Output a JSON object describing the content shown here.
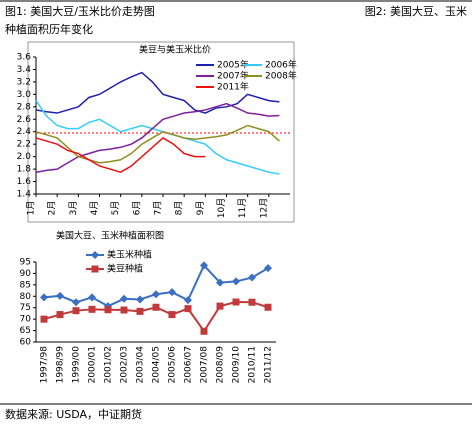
{
  "header": {
    "left": "图1: 美国大豆/玉米比价走势图",
    "right": "图2: 美国大豆、玉米",
    "right_line2": "种植面积历年变化"
  },
  "source": "数据来源: USDA，中证期货",
  "chart_data": [
    {
      "type": "line",
      "title": "美豆与美玉米比价",
      "x": [
        0,
        0.5,
        1,
        1.5,
        2,
        2.5,
        3,
        3.5,
        4,
        4.5,
        5,
        5.5,
        6,
        6.5,
        7,
        7.5,
        8,
        8.5,
        9,
        9.5,
        10,
        10.5,
        11,
        11.5
      ],
      "xlim": [
        0,
        12
      ],
      "xticks": [
        {
          "value": 0,
          "label": "1月"
        },
        {
          "value": 1,
          "label": "2月"
        },
        {
          "value": 2,
          "label": "3月"
        },
        {
          "value": 3,
          "label": "4月"
        },
        {
          "value": 4,
          "label": "5月"
        },
        {
          "value": 5,
          "label": "6月"
        },
        {
          "value": 6,
          "label": "7月"
        },
        {
          "value": 7,
          "label": "8月"
        },
        {
          "value": 8,
          "label": "9月"
        },
        {
          "value": 9,
          "label": "10月"
        },
        {
          "value": 10,
          "label": "11月"
        },
        {
          "value": 11,
          "label": "12月"
        }
      ],
      "ylim": [
        1.4,
        3.6
      ],
      "yticks": [
        1.4,
        1.6,
        1.8,
        {
          "value": 2,
          "label": "2.0"
        },
        2.2,
        2.4,
        2.6,
        2.8,
        {
          "value": 3,
          "label": "3.0"
        },
        3.2,
        3.4,
        3.6
      ],
      "reference_line": {
        "value": 2.38,
        "color": "#ff0000"
      },
      "series": [
        {
          "name": "2005年",
          "color": "#1f1fb4",
          "values": [
            2.75,
            2.72,
            2.7,
            2.75,
            2.8,
            2.95,
            3.0,
            3.1,
            3.2,
            3.28,
            3.35,
            3.2,
            3.0,
            2.95,
            2.9,
            2.75,
            2.7,
            2.78,
            2.8,
            2.85,
            3.0,
            2.95,
            2.9,
            2.88
          ]
        },
        {
          "name": "2006年",
          "color": "#33ccff",
          "values": [
            2.9,
            2.65,
            2.5,
            2.45,
            2.45,
            2.55,
            2.6,
            2.5,
            2.4,
            2.45,
            2.5,
            2.45,
            2.4,
            2.35,
            2.3,
            2.25,
            2.2,
            2.05,
            1.95,
            1.9,
            1.85,
            1.8,
            1.75,
            1.72
          ]
        },
        {
          "name": "2007年",
          "color": "#7f1f9f",
          "values": [
            1.75,
            1.78,
            1.8,
            1.9,
            2.0,
            2.05,
            2.1,
            2.12,
            2.15,
            2.2,
            2.3,
            2.45,
            2.6,
            2.65,
            2.7,
            2.72,
            2.75,
            2.8,
            2.85,
            2.78,
            2.7,
            2.68,
            2.65,
            2.66
          ]
        },
        {
          "name": "2008年",
          "color": "#8f8f1f",
          "values": [
            2.4,
            2.35,
            2.3,
            2.15,
            2.0,
            1.95,
            1.9,
            1.92,
            1.95,
            2.05,
            2.2,
            2.3,
            2.4,
            2.35,
            2.3,
            2.28,
            2.3,
            2.32,
            2.35,
            2.42,
            2.5,
            2.45,
            2.4,
            2.25
          ]
        },
        {
          "name": "2011年",
          "color": "#ee1111",
          "values": [
            2.3,
            2.25,
            2.2,
            2.1,
            2.05,
            1.95,
            1.85,
            1.8,
            1.75,
            1.85,
            2.0,
            2.15,
            2.3,
            2.2,
            2.05,
            2.0,
            2.0,
            null,
            null,
            null,
            null,
            null,
            null,
            null
          ]
        }
      ]
    },
    {
      "type": "line",
      "title": "美国大豆、玉米种植面积图",
      "categories": [
        "1997/98",
        "1998/99",
        "1999/00",
        "2000/01",
        "2001/02",
        "2002/03",
        "2003/04",
        "2004/05",
        "2005/06",
        "2006/07",
        "2007/08",
        "2008/09",
        "2009/10",
        "2010/11",
        "2011/12"
      ],
      "ylim": [
        60,
        95
      ],
      "yticks": [
        60,
        65,
        70,
        75,
        80,
        85,
        90,
        95
      ],
      "series": [
        {
          "name": "美玉米种植",
          "color": "#3a6fc4",
          "marker": "diamond",
          "values": [
            79.5,
            80.2,
            77.4,
            79.5,
            75.7,
            78.9,
            78.6,
            80.9,
            81.8,
            78.3,
            93.5,
            86.0,
            86.5,
            88.2,
            92.3
          ]
        },
        {
          "name": "美豆种植",
          "color": "#c0393b",
          "marker": "square",
          "values": [
            70.0,
            72.0,
            73.7,
            74.3,
            74.1,
            74.0,
            73.4,
            75.2,
            72.0,
            74.6,
            64.7,
            75.7,
            77.5,
            77.4,
            75.2
          ]
        }
      ]
    }
  ]
}
